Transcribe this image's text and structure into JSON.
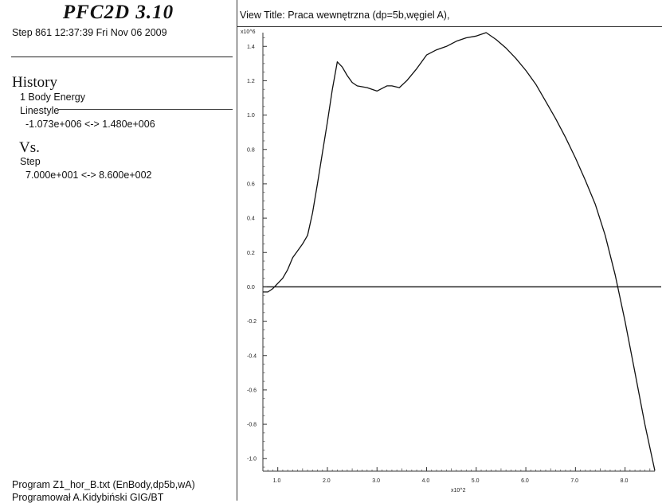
{
  "header": {
    "app_title": "PFC2D 3.10",
    "step_line": "Step 861  12:37:39 Fri Nov 06 2009"
  },
  "legend": {
    "history_label": "History",
    "history_item": "1 Body Energy",
    "linestyle_label": "Linestyle",
    "y_range": "-1.073e+006 <-> 1.480e+006",
    "vs_label": "Vs.",
    "vs_item": "Step",
    "x_range": "7.000e+001 <-> 8.600e+002"
  },
  "footer": {
    "program_line": "Program Z1_hor_B.txt (EnBody,dp5b,wA)",
    "programmer_line": "Programował A.Kidybiński GIG/BT"
  },
  "view_title": "View Title: Praca wewnętrzna  (dp=5b,węgiel A),",
  "chart_data": {
    "type": "line",
    "y_multiplier_label": "x10^6",
    "x_multiplier_label": "x10^2",
    "xlim": [
      0.7,
      8.6
    ],
    "ylim": [
      -1.073,
      1.48
    ],
    "x_ticks": [
      1.0,
      2.0,
      3.0,
      4.0,
      5.0,
      6.0,
      7.0,
      8.0
    ],
    "x_tick_labels": [
      "1.0",
      "2.0",
      "3.0",
      "4.0",
      "5.0",
      "6.0",
      "7.0",
      "8.0"
    ],
    "y_ticks": [
      1.4,
      1.2,
      1.0,
      0.8,
      0.6,
      0.4,
      0.2,
      0.0,
      -0.2,
      -0.4,
      -0.6,
      -0.8,
      -1.0
    ],
    "y_tick_labels": [
      "1.4",
      "1.2",
      "1.0",
      "0.8",
      "0.6",
      "0.4",
      "0.2",
      "0.0",
      "-0.2",
      "-0.4",
      "-0.6",
      "-0.8",
      "-1.0"
    ],
    "zero_line": true,
    "grid": false,
    "series": [
      {
        "color": "#111111",
        "x": [
          0.7,
          0.8,
          0.9,
          1.0,
          1.1,
          1.2,
          1.3,
          1.4,
          1.5,
          1.6,
          1.7,
          1.8,
          1.9,
          2.0,
          2.1,
          2.2,
          2.3,
          2.4,
          2.5,
          2.6,
          2.8,
          3.0,
          3.2,
          3.3,
          3.45,
          3.6,
          3.8,
          4.0,
          4.2,
          4.4,
          4.6,
          4.8,
          5.0,
          5.2,
          5.4,
          5.6,
          5.8,
          6.0,
          6.2,
          6.4,
          6.6,
          6.8,
          7.0,
          7.2,
          7.4,
          7.6,
          7.8,
          8.0,
          8.2,
          8.4,
          8.6
        ],
        "y": [
          -0.03,
          -0.03,
          -0.01,
          0.02,
          0.05,
          0.1,
          0.17,
          0.21,
          0.25,
          0.3,
          0.43,
          0.6,
          0.78,
          0.96,
          1.15,
          1.31,
          1.28,
          1.23,
          1.19,
          1.17,
          1.16,
          1.14,
          1.17,
          1.17,
          1.16,
          1.2,
          1.27,
          1.35,
          1.38,
          1.4,
          1.43,
          1.45,
          1.46,
          1.48,
          1.44,
          1.39,
          1.33,
          1.26,
          1.18,
          1.08,
          0.98,
          0.87,
          0.75,
          0.62,
          0.48,
          0.3,
          0.07,
          -0.2,
          -0.5,
          -0.8,
          -1.07
        ]
      }
    ]
  }
}
